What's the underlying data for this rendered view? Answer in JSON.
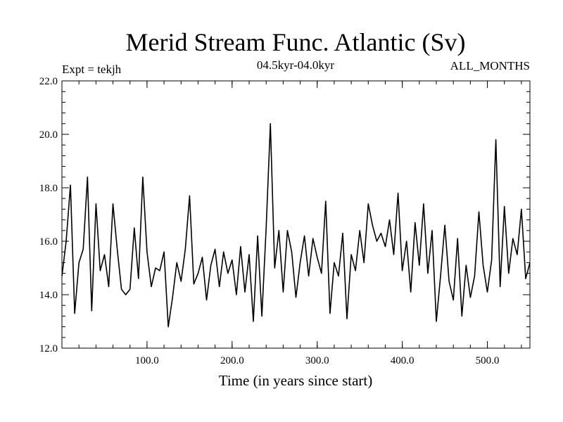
{
  "chart_data": {
    "type": "line",
    "title": "Merid Stream Func. Atlantic (Sv)",
    "subtitle": "04.5kyr-04.0kyr",
    "experiment_label": "Expt = tekjh",
    "season_label": "ALL_MONTHS",
    "xlabel": "Time (in years since start)",
    "ylabel": "",
    "xlim": [
      0,
      550
    ],
    "ylim": [
      12.0,
      22.0
    ],
    "xticks": [
      100,
      200,
      300,
      400,
      500
    ],
    "xtick_labels": [
      "100.0",
      "200.0",
      "300.0",
      "400.0",
      "500.0"
    ],
    "yticks": [
      12,
      14,
      16,
      18,
      20,
      22
    ],
    "ytick_labels": [
      "12.0",
      "14.0",
      "16.0",
      "18.0",
      "20.0",
      "22.0"
    ],
    "grid": false,
    "series": [
      {
        "name": "Merid Stream Func. Atlantic",
        "color": "#000000",
        "x": [
          0,
          5,
          10,
          15,
          20,
          25,
          30,
          35,
          40,
          45,
          50,
          55,
          60,
          65,
          70,
          75,
          80,
          85,
          90,
          95,
          100,
          105,
          110,
          115,
          120,
          125,
          130,
          135,
          140,
          145,
          150,
          155,
          160,
          165,
          170,
          175,
          180,
          185,
          190,
          195,
          200,
          205,
          210,
          215,
          220,
          225,
          230,
          235,
          240,
          245,
          250,
          255,
          260,
          265,
          270,
          275,
          280,
          285,
          290,
          295,
          300,
          305,
          310,
          315,
          320,
          325,
          330,
          335,
          340,
          345,
          350,
          355,
          360,
          365,
          370,
          375,
          380,
          385,
          390,
          395,
          400,
          405,
          410,
          415,
          420,
          425,
          430,
          435,
          440,
          445,
          450,
          455,
          460,
          465,
          470,
          475,
          480,
          485,
          490,
          495,
          500,
          505,
          510,
          515,
          520,
          525,
          530,
          535,
          540,
          545,
          550
        ],
        "y": [
          14.7,
          16.0,
          18.1,
          13.3,
          15.2,
          15.7,
          18.4,
          13.4,
          17.4,
          14.9,
          15.5,
          14.3,
          17.4,
          15.7,
          14.2,
          14.0,
          14.2,
          16.5,
          14.6,
          18.4,
          15.6,
          14.3,
          15.0,
          14.9,
          15.6,
          12.8,
          13.9,
          15.2,
          14.5,
          15.7,
          17.7,
          14.4,
          14.8,
          15.4,
          13.8,
          15.1,
          15.7,
          14.3,
          15.6,
          14.8,
          15.3,
          14.0,
          15.8,
          14.1,
          15.5,
          13.0,
          16.2,
          13.2,
          16.5,
          20.4,
          15.0,
          16.4,
          14.1,
          16.4,
          15.6,
          13.9,
          15.2,
          16.2,
          14.7,
          16.1,
          15.4,
          14.8,
          17.5,
          13.3,
          15.2,
          14.7,
          16.3,
          13.1,
          15.5,
          14.9,
          16.4,
          15.2,
          17.4,
          16.6,
          16.0,
          16.3,
          15.8,
          16.8,
          15.5,
          17.8,
          14.9,
          16.0,
          14.1,
          16.7,
          15.1,
          17.4,
          14.8,
          16.4,
          13.0,
          14.7,
          16.6,
          14.5,
          13.8,
          16.1,
          13.2,
          15.1,
          13.9,
          14.7,
          17.1,
          15.1,
          14.1,
          15.3,
          19.8,
          14.3,
          17.3,
          14.8,
          16.1,
          15.5,
          17.2,
          14.6,
          15.2
        ]
      }
    ]
  }
}
